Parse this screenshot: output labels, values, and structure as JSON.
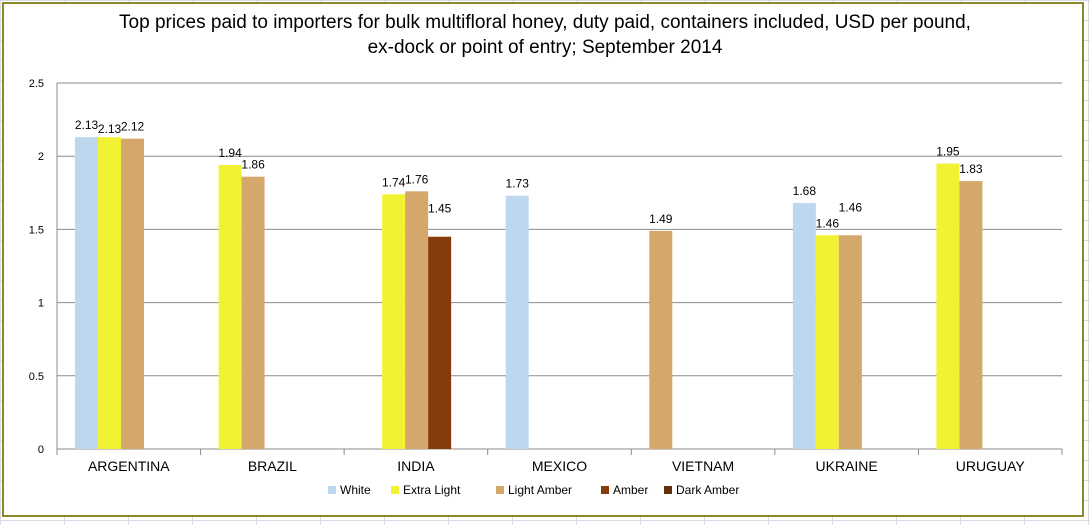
{
  "chart_data": {
    "type": "bar",
    "title": "Top prices paid to importers for bulk multifloral honey, duty paid, containers included, USD per pound,\nex-dock or point of entry; September 2014",
    "xlabel": "",
    "ylabel": "",
    "ylim": [
      0,
      2.5
    ],
    "yticks": [
      "0",
      "0.5",
      "1",
      "1.5",
      "2",
      "2.5"
    ],
    "grid": true,
    "legend_position": "bottom",
    "categories": [
      "ARGENTINA",
      "BRAZIL",
      "INDIA",
      "MEXICO",
      "VIETNAM",
      "UKRAINE",
      "URUGUAY"
    ],
    "series": [
      {
        "name": "White",
        "color": "#bdd7ee",
        "values": [
          2.13,
          null,
          null,
          1.73,
          null,
          1.68,
          null
        ],
        "labels": [
          "2.13",
          null,
          null,
          "1.73",
          null,
          "1.68",
          null
        ]
      },
      {
        "name": "Extra Light",
        "color": "#f2f235",
        "values": [
          2.13,
          1.94,
          1.74,
          null,
          null,
          1.46,
          1.95
        ],
        "labels": [
          "2.13",
          "1.94",
          "1.74",
          null,
          null,
          "1.46",
          "1.95"
        ]
      },
      {
        "name": "Light Amber",
        "color": "#d4a76a",
        "values": [
          2.12,
          1.86,
          1.76,
          null,
          1.49,
          1.46,
          1.83
        ],
        "labels": [
          "2.12",
          "1.86",
          "1.76",
          null,
          "1.49",
          "1.46",
          "1.83"
        ]
      },
      {
        "name": "Amber",
        "color": "#843c0c",
        "values": [
          null,
          null,
          1.45,
          null,
          null,
          null,
          null
        ],
        "labels": [
          null,
          null,
          "1.45",
          null,
          null,
          null,
          null
        ]
      },
      {
        "name": "Dark Amber",
        "color": "#632f0d",
        "values": [
          null,
          null,
          null,
          null,
          null,
          null,
          null
        ],
        "labels": [
          null,
          null,
          null,
          null,
          null,
          null,
          null
        ]
      }
    ]
  }
}
